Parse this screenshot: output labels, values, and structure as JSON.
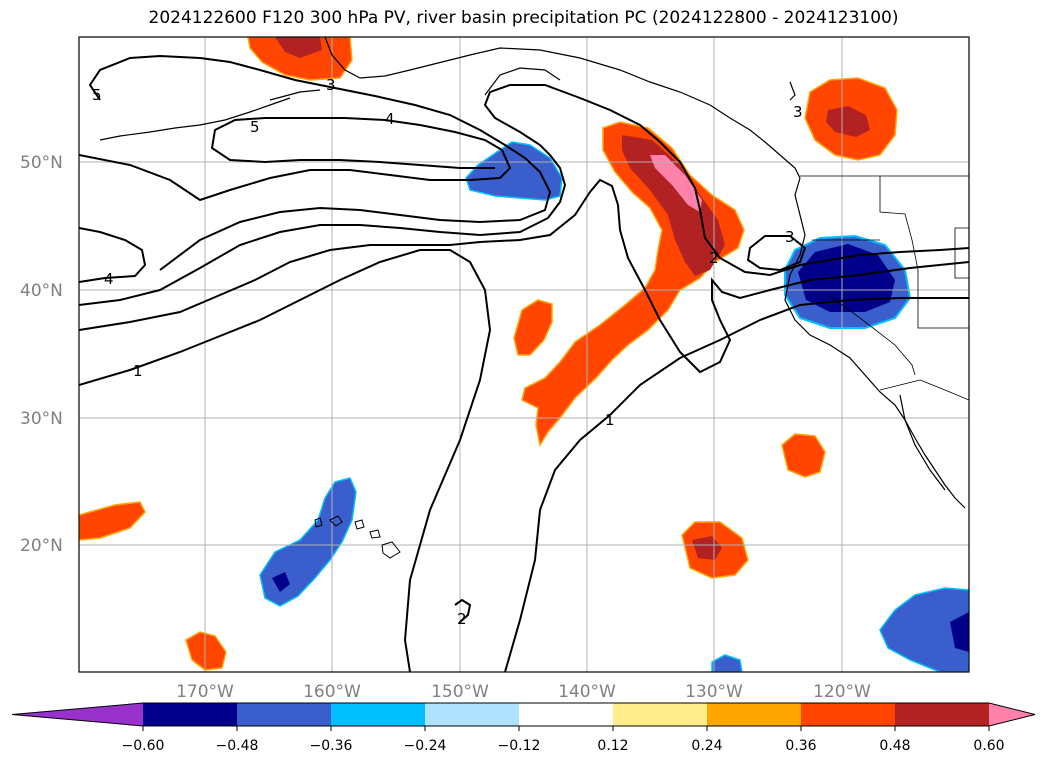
{
  "title": "2024122600 F120 300 hPa PV, river basin precipitation PC (2024122800 - 2024123100)",
  "lat_labels": [
    "50°N",
    "40°N",
    "30°N",
    "20°N"
  ],
  "lon_labels": [
    "170°W",
    "160°W",
    "150°W",
    "140°W",
    "130°W",
    "120°W"
  ],
  "contour_labels": [
    "5",
    "5",
    "4",
    "4",
    "3",
    "3",
    "3",
    "2",
    "2",
    "1",
    "1"
  ],
  "colorbar": {
    "ticks": [
      "−0.60",
      "−0.48",
      "−0.36",
      "−0.24",
      "−0.12",
      "0.12",
      "0.24",
      "0.36",
      "0.48",
      "0.60"
    ],
    "colors": [
      "#9932cc",
      "#00008b",
      "#3a5fcd",
      "#00bfff",
      "#b0e2ff",
      "#ffffff",
      "#ffec8b",
      "#ffa500",
      "#ff4500",
      "#b22222",
      "#ff82ab"
    ]
  }
}
